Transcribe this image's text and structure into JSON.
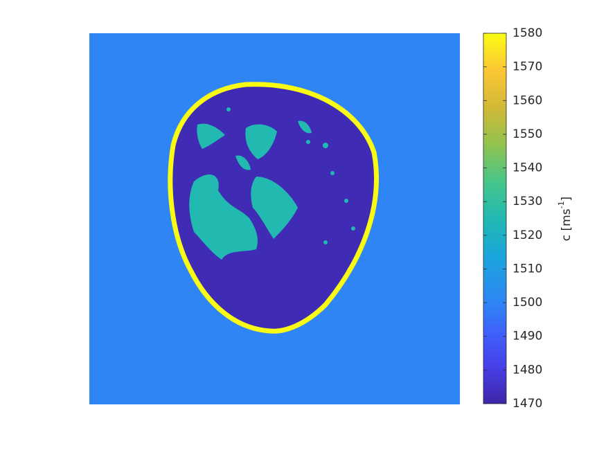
{
  "chart_data": {
    "type": "image",
    "colormap": "parula",
    "region_values": [
      1500,
      1472,
      1525,
      1580
    ],
    "clim": [
      1470,
      1580
    ],
    "colorbar_ticks": [
      1470,
      1480,
      1490,
      1500,
      1510,
      1520,
      1530,
      1540,
      1550,
      1560,
      1570,
      1580
    ],
    "colorbar_label": [
      "c [ms",
      "-1",
      "]"
    ]
  }
}
